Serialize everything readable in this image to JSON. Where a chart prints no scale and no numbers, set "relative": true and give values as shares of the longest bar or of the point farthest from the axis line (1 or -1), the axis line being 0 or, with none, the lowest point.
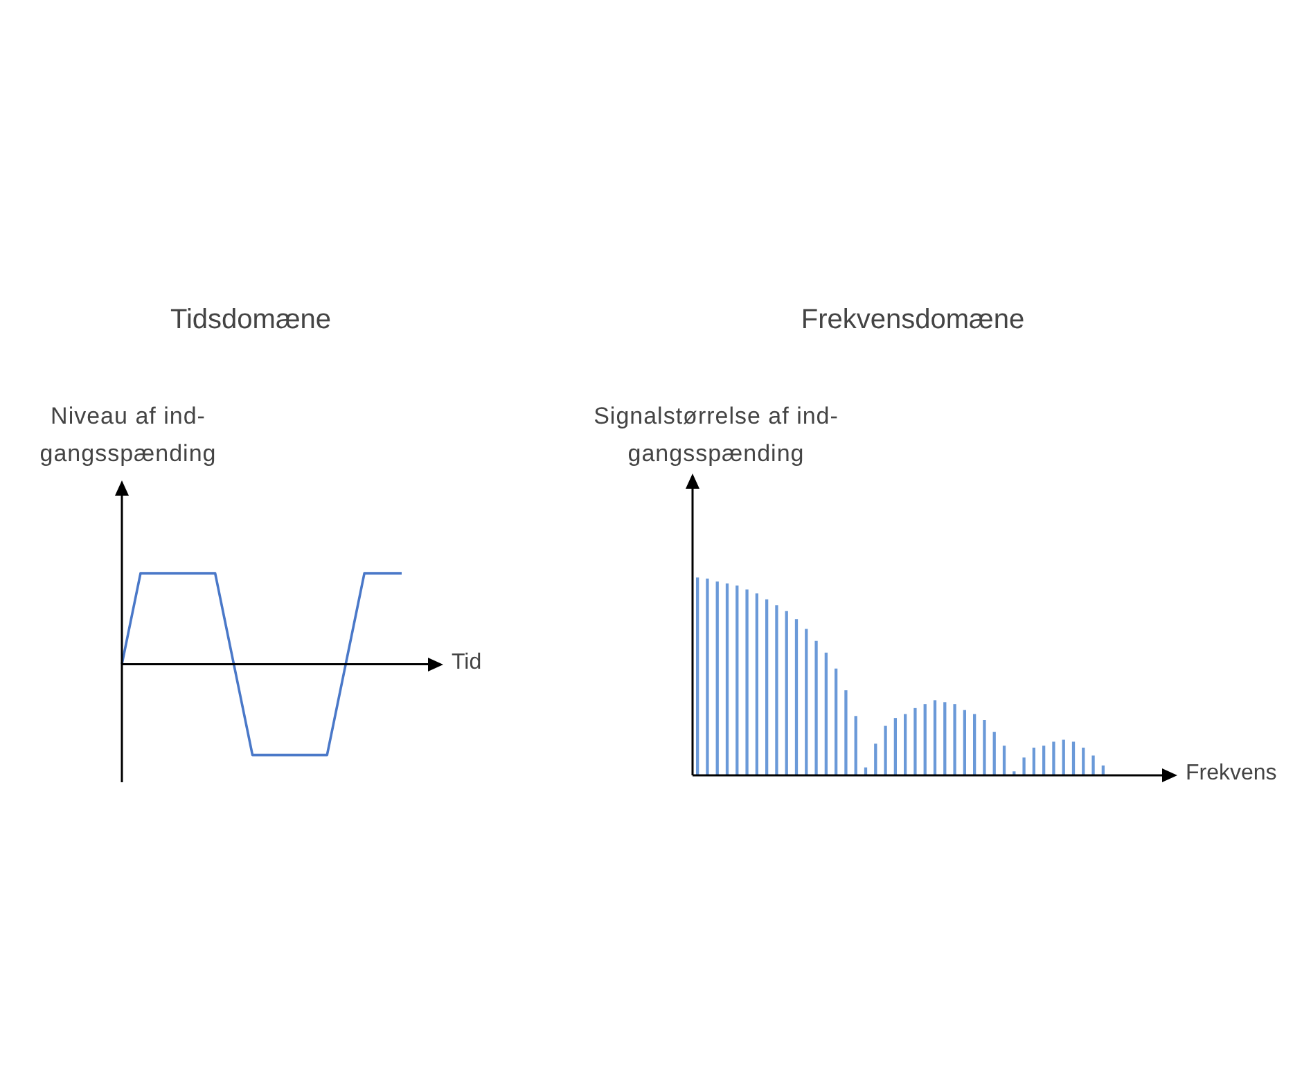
{
  "chart_data": [
    {
      "type": "line",
      "title": "Tidsdomæne",
      "ylabel": "Niveau af ind-gangsspænding",
      "xlabel": "Tid",
      "relative": true,
      "tick_labels": false,
      "color": "#4a78c8",
      "categories": [
        null,
        null,
        null,
        null,
        null,
        null,
        null,
        null,
        null,
        null,
        null,
        null,
        null,
        null,
        null,
        null
      ],
      "values": [
        0,
        1,
        1,
        1,
        1,
        1,
        0,
        -1,
        -1,
        -1,
        -1,
        -1,
        0,
        1,
        1,
        1
      ]
    },
    {
      "type": "bar",
      "title": "Frekvensdomæne",
      "ylabel": "Signalstørrelse af ind-gangsspænding",
      "xlabel": "Frekvens",
      "relative": true,
      "tick_labels": false,
      "color": "#6a99d8",
      "categories": [
        null,
        null,
        null,
        null,
        null,
        null,
        null,
        null,
        null,
        null,
        null,
        null,
        null,
        null,
        null,
        null,
        null,
        null,
        null,
        null,
        null,
        null,
        null,
        null,
        null,
        null,
        null,
        null,
        null,
        null,
        null,
        null,
        null,
        null,
        null,
        null,
        null,
        null,
        null,
        null,
        null,
        null
      ],
      "values": [
        1,
        0.995,
        0.98,
        0.97,
        0.96,
        0.94,
        0.92,
        0.89,
        0.86,
        0.83,
        0.79,
        0.74,
        0.68,
        0.62,
        0.54,
        0.43,
        0.3,
        0.04,
        0.16,
        0.25,
        0.29,
        0.31,
        0.34,
        0.36,
        0.38,
        0.37,
        0.36,
        0.33,
        0.31,
        0.28,
        0.22,
        0.15,
        0.02,
        0.09,
        0.14,
        0.15,
        0.17,
        0.18,
        0.17,
        0.14,
        0.1,
        0.05
      ]
    }
  ]
}
